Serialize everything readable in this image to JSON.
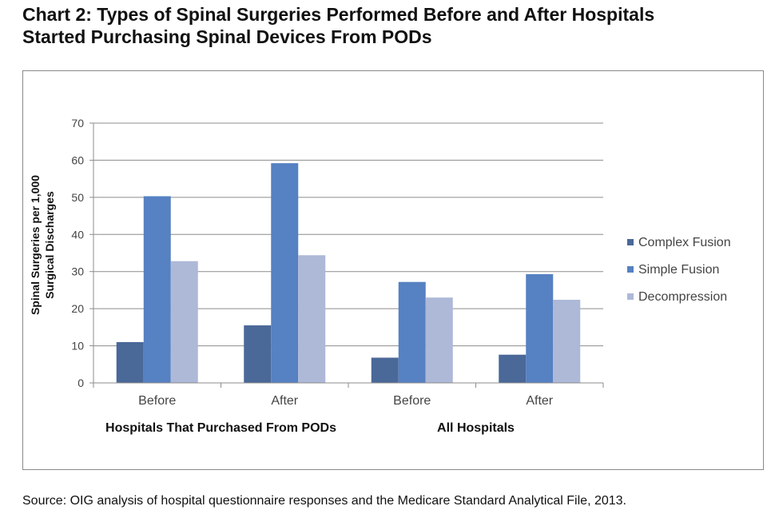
{
  "title_line1": "Chart 2:  Types of Spinal Surgeries Performed Before and After Hospitals",
  "title_line2": "Started Purchasing Spinal Devices From PODs",
  "source": "Source:  OIG analysis of hospital questionnaire responses and the Medicare Standard Analytical File, 2013.",
  "chart_data": {
    "type": "bar",
    "ylabel": [
      "Spinal Surgeries per 1,000",
      "Surgical Discharges"
    ],
    "ylim": [
      0,
      70
    ],
    "yticks": [
      0,
      10,
      20,
      30,
      40,
      50,
      60,
      70
    ],
    "grid": true,
    "legend_position": "right",
    "categories": [
      "Before",
      "After",
      "Before",
      "After"
    ],
    "groups": [
      {
        "label": "Hospitals That Purchased From PODs",
        "span": [
          0,
          1
        ]
      },
      {
        "label": "All Hospitals",
        "span": [
          2,
          3
        ]
      }
    ],
    "series": [
      {
        "name": "Complex Fusion",
        "color": "#4a6898",
        "values": [
          11,
          15.5,
          6.8,
          7.6
        ]
      },
      {
        "name": "Simple Fusion",
        "color": "#5681c2",
        "values": [
          50.3,
          59.2,
          27.2,
          29.3
        ]
      },
      {
        "name": "Decompression",
        "color": "#aeb9d8",
        "values": [
          32.8,
          34.4,
          23,
          22.4
        ]
      }
    ]
  }
}
